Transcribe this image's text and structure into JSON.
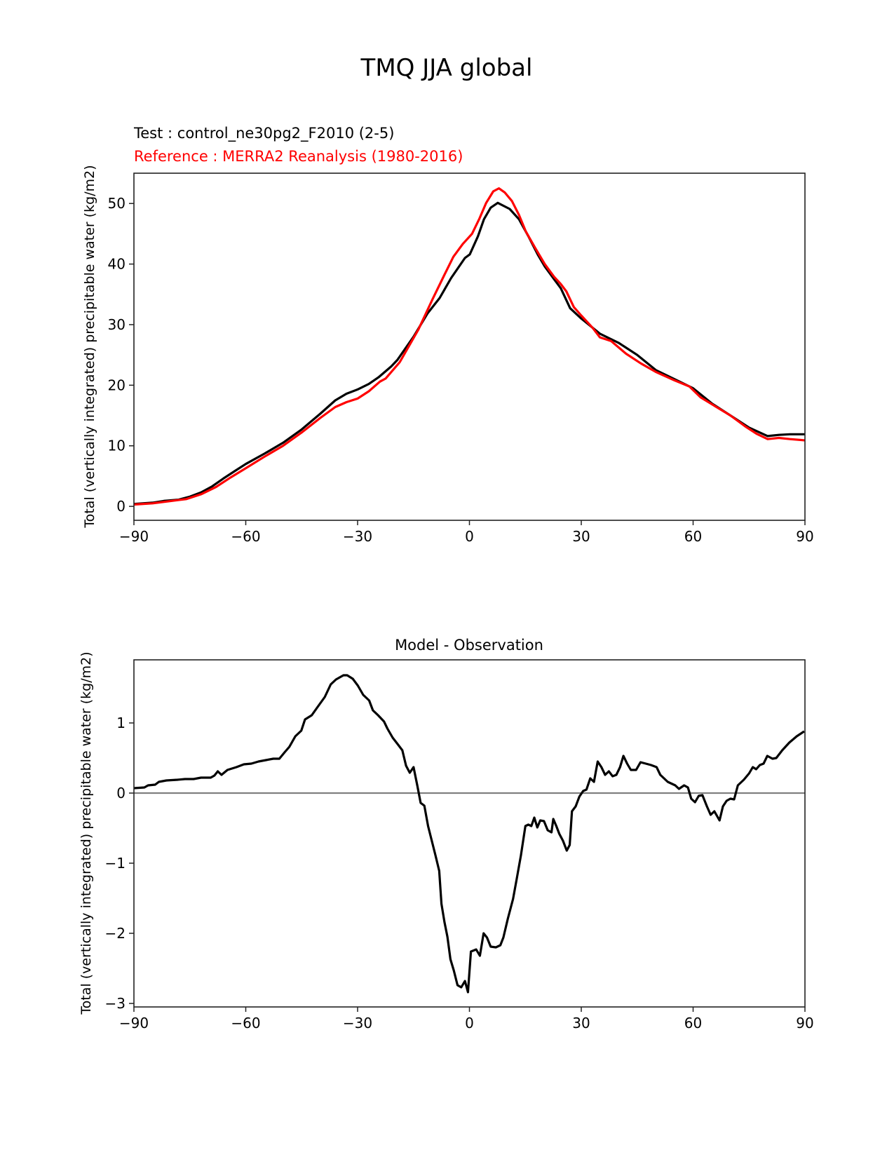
{
  "figure_title": "TMQ JJA global",
  "chart_data": [
    {
      "type": "line",
      "panel": "top",
      "title_test": "Test : control_ne30pg2_F2010 (2-5)",
      "title_reference": "Reference : MERRA2 Reanalysis (1980-2016)",
      "xlabel": "",
      "ylabel": "Total (vertically integrated) precipitable water (kg/m2)",
      "xlim": [
        -90,
        90
      ],
      "ylim": [
        -2.3,
        55
      ],
      "xticks": [
        -90,
        -60,
        -30,
        0,
        30,
        60,
        90
      ],
      "xtick_labels": [
        "−90",
        "−60",
        "−30",
        "0",
        "30",
        "60",
        "90"
      ],
      "yticks": [
        0,
        10,
        20,
        30,
        40,
        50
      ],
      "ytick_labels": [
        "0",
        "10",
        "20",
        "30",
        "40",
        "50"
      ],
      "grid": false,
      "series": [
        {
          "name": "Test",
          "color": "#000000",
          "x": [
            -90,
            -85,
            -82,
            -78,
            -75,
            -72,
            -69,
            -66,
            -63,
            -60,
            -55,
            -50,
            -45,
            -40,
            -36,
            -33,
            -30,
            -27,
            -24.4,
            -21,
            -19.3,
            -15,
            -11.2,
            -8,
            -4.9,
            -1.2,
            0.1,
            2.3,
            3.9,
            5.7,
            7.6,
            10.8,
            13.3,
            15.8,
            18.3,
            20.2,
            22.7,
            24.5,
            27,
            30,
            35,
            40,
            45,
            50,
            55,
            60,
            65,
            70,
            75,
            80,
            83,
            86,
            90
          ],
          "y": [
            0.4,
            0.6,
            0.9,
            1.1,
            1.6,
            2.3,
            3.3,
            4.6,
            5.8,
            7.0,
            8.7,
            10.5,
            12.7,
            15.3,
            17.5,
            18.6,
            19.3,
            20.2,
            21.3,
            23.1,
            24.2,
            28.0,
            31.9,
            34.4,
            37.7,
            41.0,
            41.6,
            44.6,
            47.4,
            49.3,
            50.1,
            49.1,
            47.4,
            44.6,
            41.6,
            39.6,
            37.5,
            36.0,
            32.7,
            31.0,
            28.5,
            27.0,
            25.0,
            22.5,
            21.0,
            19.5,
            17.0,
            15.0,
            13.0,
            11.6,
            11.8,
            11.9,
            11.9
          ]
        },
        {
          "name": "Reference",
          "color": "#ff0000",
          "x": [
            -90,
            -85,
            -80,
            -76,
            -72,
            -68,
            -64,
            -60,
            -55,
            -50,
            -45,
            -40,
            -36,
            -33,
            -30,
            -27,
            -24,
            -22.5,
            -18.7,
            -13.7,
            -9.9,
            -6.8,
            -4.3,
            -1.8,
            0.7,
            2.6,
            4.5,
            6.4,
            7.9,
            9.5,
            11.4,
            13.3,
            15.1,
            17.6,
            20.2,
            22.7,
            24.5,
            26,
            28,
            30,
            33,
            35,
            38,
            42,
            46,
            50,
            55,
            59,
            62,
            66,
            70,
            74,
            77,
            80,
            83,
            86,
            90
          ],
          "y": [
            0.3,
            0.5,
            0.9,
            1.2,
            2.0,
            3.2,
            4.8,
            6.3,
            8.2,
            10.0,
            12.2,
            14.6,
            16.4,
            17.2,
            17.8,
            19.0,
            20.6,
            21.1,
            23.8,
            29.2,
            34.2,
            38.1,
            41.2,
            43.3,
            45.0,
            47.4,
            50.1,
            52.0,
            52.5,
            51.8,
            50.4,
            48.1,
            45.4,
            42.7,
            40.0,
            37.9,
            36.7,
            35.5,
            32.9,
            31.5,
            29.5,
            27.9,
            27.3,
            25.2,
            23.6,
            22.2,
            20.8,
            19.8,
            18.0,
            16.5,
            15.0,
            13.2,
            12.0,
            11.1,
            11.3,
            11.1,
            10.9
          ]
        }
      ]
    },
    {
      "type": "line",
      "panel": "bottom",
      "title": "Model - Observation",
      "xlabel": "",
      "ylabel": "Total (vertically integrated) precipitable water (kg/m2)",
      "xlim": [
        -90,
        90
      ],
      "ylim": [
        -3.05,
        1.9
      ],
      "xticks": [
        -90,
        -60,
        -30,
        0,
        30,
        60,
        90
      ],
      "xtick_labels": [
        "−90",
        "−60",
        "−30",
        "0",
        "30",
        "60",
        "90"
      ],
      "yticks": [
        -3,
        -2,
        -1,
        0,
        1
      ],
      "ytick_labels": [
        "−3",
        "−2",
        "−1",
        "0",
        "1"
      ],
      "grid": false,
      "zero_line": {
        "y": 0,
        "color": "#808080"
      },
      "series": [
        {
          "name": "Model - Observation",
          "color": "#000000",
          "x": [
            -90,
            -87.2,
            -86.2,
            -84.3,
            -83.3,
            -81.3,
            -78.3,
            -76.3,
            -74,
            -72,
            -69.4,
            -68.4,
            -67.5,
            -66.5,
            -64.9,
            -62.5,
            -60.5,
            -58.5,
            -56.6,
            -54.6,
            -52.6,
            -51,
            -49.6,
            -48.3,
            -46.7,
            -45.1,
            -44.1,
            -42.3,
            -40.7,
            -38.8,
            -37.2,
            -35.8,
            -34.8,
            -33.8,
            -32.8,
            -31.3,
            -29.9,
            -28.5,
            -26.9,
            -25.9,
            -24.5,
            -22.9,
            -22,
            -20.6,
            -19,
            -18,
            -17,
            -16,
            -15,
            -14,
            -13.1,
            -12.1,
            -11.1,
            -9.1,
            -8.1,
            -7.5,
            -6.7,
            -5.9,
            -5.1,
            -4.2,
            -3.2,
            -2.2,
            -1.2,
            -0.4,
            0.4,
            1.8,
            2.8,
            3.8,
            4.7,
            5.7,
            7.1,
            8.3,
            9.1,
            10.3,
            11.7,
            12.7,
            13.8,
            15,
            15.8,
            16.6,
            17.4,
            18.2,
            19,
            20,
            21,
            22,
            22.5,
            23.3,
            24.1,
            25.1,
            26.1,
            26.9,
            27.5,
            28.5,
            29.5,
            30.5,
            31.4,
            32.4,
            33.4,
            34.4,
            35.4,
            36.4,
            37.4,
            38.4,
            39.4,
            40.4,
            41.3,
            42.3,
            43.3,
            44.7,
            45.9,
            47.3,
            48.7,
            50.2,
            51.2,
            53.2,
            55.2,
            56.2,
            57.6,
            58.6,
            59.5,
            60.5,
            61.5,
            62.5,
            63.7,
            64.7,
            65.7,
            67.1,
            68,
            69,
            70,
            71,
            72,
            73.6,
            75,
            76,
            76.9,
            77.9,
            78.9,
            79.9,
            81.3,
            82.3,
            83.9,
            85.8,
            87.8,
            89.8
          ],
          "y": [
            0.07,
            0.08,
            0.11,
            0.12,
            0.16,
            0.18,
            0.19,
            0.2,
            0.2,
            0.22,
            0.22,
            0.25,
            0.31,
            0.26,
            0.33,
            0.37,
            0.41,
            0.42,
            0.45,
            0.47,
            0.49,
            0.49,
            0.58,
            0.66,
            0.81,
            0.89,
            1.05,
            1.11,
            1.23,
            1.37,
            1.55,
            1.62,
            1.65,
            1.68,
            1.68,
            1.63,
            1.53,
            1.4,
            1.32,
            1.18,
            1.11,
            1.02,
            0.92,
            0.79,
            0.68,
            0.61,
            0.39,
            0.29,
            0.37,
            0.11,
            -0.14,
            -0.18,
            -0.47,
            -0.89,
            -1.11,
            -1.58,
            -1.84,
            -2.05,
            -2.37,
            -2.53,
            -2.74,
            -2.77,
            -2.68,
            -2.84,
            -2.26,
            -2.23,
            -2.32,
            -2.0,
            -2.06,
            -2.19,
            -2.2,
            -2.17,
            -2.06,
            -1.79,
            -1.51,
            -1.22,
            -0.89,
            -0.47,
            -0.45,
            -0.47,
            -0.35,
            -0.49,
            -0.39,
            -0.4,
            -0.53,
            -0.56,
            -0.37,
            -0.47,
            -0.58,
            -0.68,
            -0.82,
            -0.74,
            -0.26,
            -0.19,
            -0.05,
            0.03,
            0.05,
            0.21,
            0.16,
            0.45,
            0.37,
            0.26,
            0.31,
            0.24,
            0.26,
            0.37,
            0.53,
            0.42,
            0.33,
            0.33,
            0.44,
            0.42,
            0.4,
            0.37,
            0.26,
            0.16,
            0.11,
            0.06,
            0.11,
            0.08,
            -0.08,
            -0.13,
            -0.04,
            -0.03,
            -0.19,
            -0.31,
            -0.26,
            -0.39,
            -0.19,
            -0.11,
            -0.08,
            -0.09,
            0.11,
            0.19,
            0.28,
            0.37,
            0.34,
            0.4,
            0.42,
            0.53,
            0.49,
            0.5,
            0.61,
            0.72,
            0.81,
            0.88
          ]
        }
      ]
    }
  ]
}
